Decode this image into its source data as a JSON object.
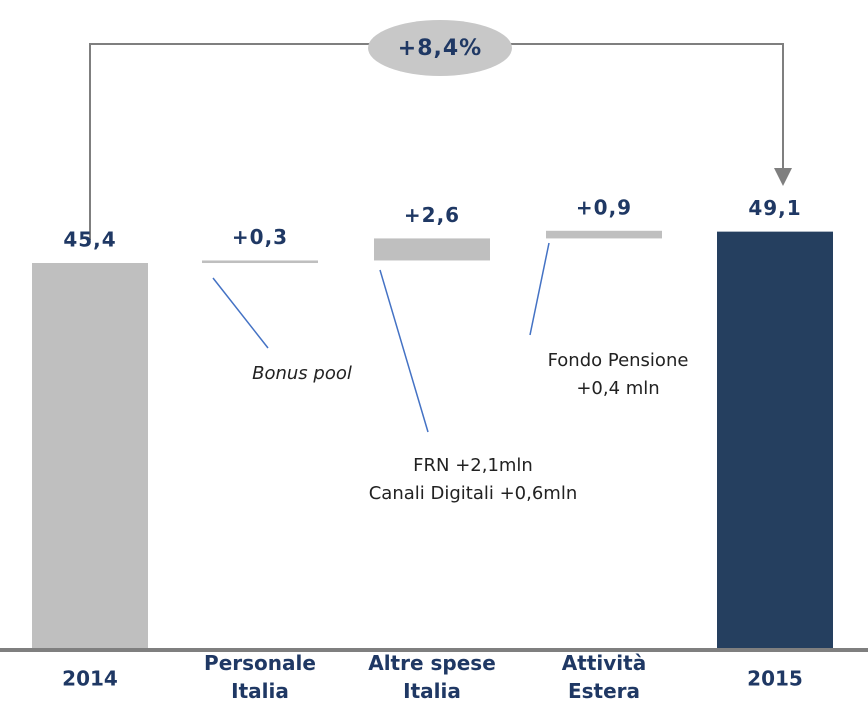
{
  "chart_data": {
    "type": "waterfall",
    "categories": [
      "2014",
      "Personale Italia",
      "Altre spese Italia",
      "Attività Estera",
      "2015"
    ],
    "values": [
      45.4,
      0.3,
      2.6,
      0.9,
      49.1
    ],
    "value_labels": [
      "45,4",
      "+0,3",
      "+2,6",
      "+0,9",
      "49,1"
    ],
    "totals": [
      true,
      false,
      false,
      false,
      true
    ],
    "colors": [
      "#bfbfbf",
      "#bfbfbf",
      "#bfbfbf",
      "#bfbfbf",
      "#253f5f"
    ],
    "ylim": [
      0,
      50
    ],
    "annotations": {
      "growth": "+8,4%",
      "bonus": "Bonus pool",
      "frn": "FRN +2,1mln",
      "digital": "Canali Digitali +0,6mln",
      "fondo": "Fondo Pensione",
      "fondo_value": "+0,4 mln"
    }
  }
}
